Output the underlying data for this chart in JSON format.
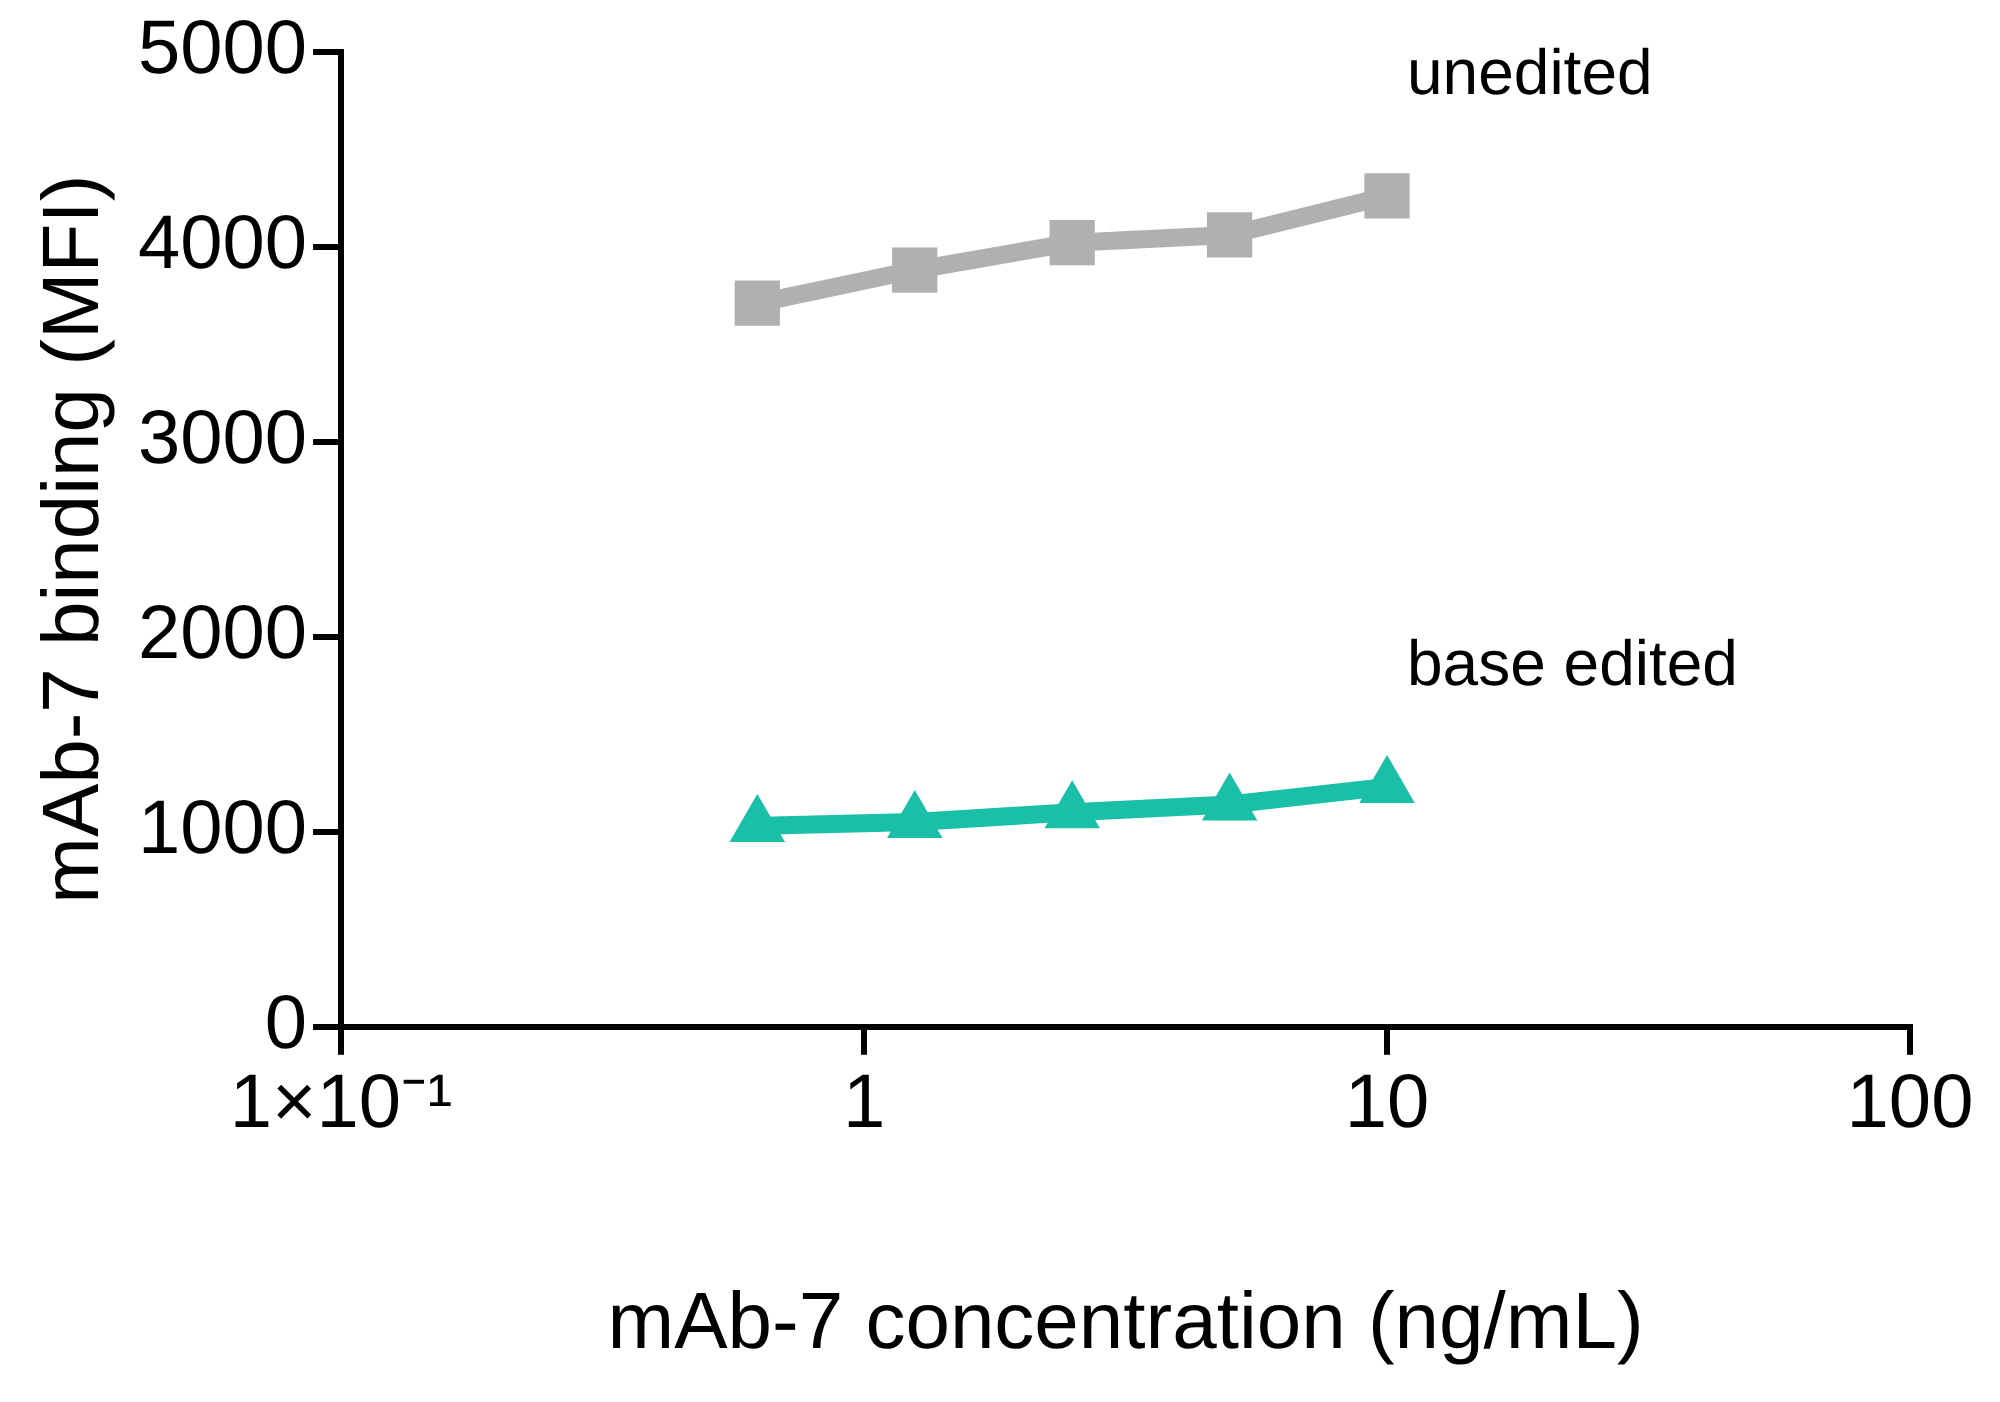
{
  "chart_data": {
    "type": "line",
    "xlabel": "mAb-7 concentration (ng/mL)",
    "ylabel": "mAb-7 binding (MFI)",
    "log": "x",
    "xlim": [
      0.1,
      100
    ],
    "xticks": [
      {
        "value": 0.1,
        "label": "1×10⁻¹"
      },
      1,
      10,
      100
    ],
    "ylim": [
      0,
      5000
    ],
    "yticks": [
      0,
      1000,
      2000,
      3000,
      4000,
      5000
    ],
    "grid": false,
    "legend": false,
    "line_style": "solid",
    "series": [
      {
        "name": "unedited",
        "color": "#b0b0b0",
        "marker": "square",
        "x": [
          0.625,
          1.25,
          2.5,
          5,
          10
        ],
        "values": [
          3710,
          3880,
          4020,
          4060,
          4260
        ]
      },
      {
        "name": "base edited",
        "color": "#19bfa6",
        "marker": "triangle",
        "x": [
          0.625,
          1.25,
          2.5,
          5,
          10
        ],
        "values": [
          1030,
          1050,
          1100,
          1140,
          1230
        ]
      }
    ]
  }
}
